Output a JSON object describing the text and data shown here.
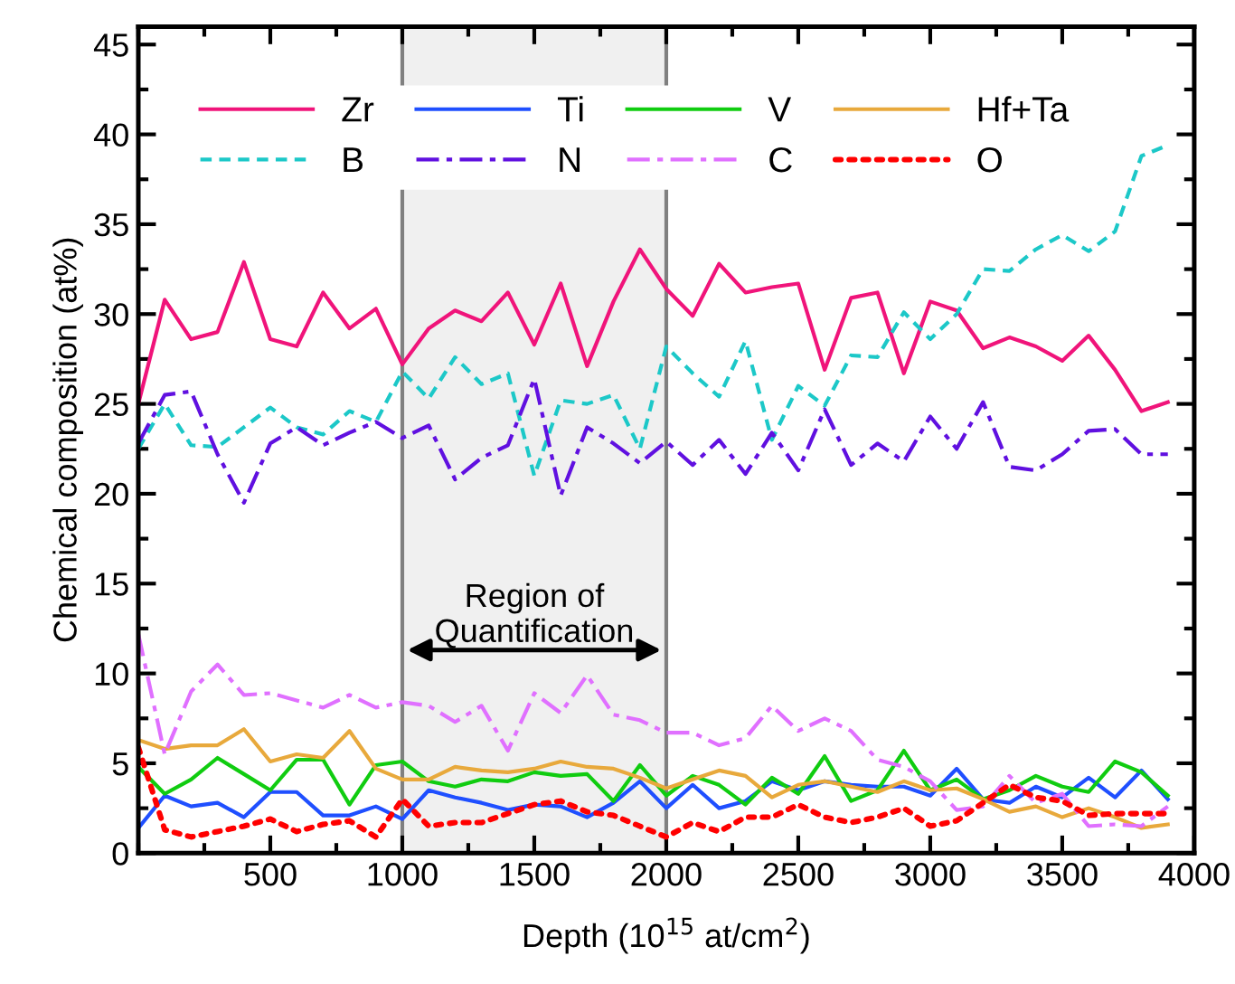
{
  "chart_data": {
    "type": "line",
    "xlabel": "Depth (10$^{15}$ at/cm$^{2}$)",
    "ylabel": "Chemical composition (at%)",
    "x": [
      0,
      100,
      200,
      300,
      400,
      500,
      600,
      700,
      800,
      900,
      1000,
      1100,
      1200,
      1300,
      1400,
      1500,
      1600,
      1700,
      1800,
      1900,
      2000,
      2100,
      2200,
      2300,
      2400,
      2500,
      2600,
      2700,
      2800,
      2900,
      3000,
      3100,
      3200,
      3300,
      3400,
      3500,
      3600,
      3700,
      3800,
      3900
    ],
    "xlim": [
      0,
      4000
    ],
    "xticks": [
      500,
      1000,
      1500,
      2000,
      2500,
      3000,
      3500,
      4000
    ],
    "ylim": [
      0,
      46
    ],
    "yticks": [
      0,
      5,
      10,
      15,
      20,
      25,
      30,
      35,
      40,
      45
    ],
    "legend": "top",
    "grid": false,
    "bands": [
      {
        "axis": "x",
        "from": 1000,
        "to": 2000,
        "label": "Region of\nQuantification",
        "color": "#f0f0f0"
      }
    ],
    "series": [
      {
        "name": "Zr",
        "color": "#f0147a",
        "line_style": "solid",
        "values": [
          25,
          30.8,
          28.6,
          29.0,
          32.9,
          28.6,
          28.2,
          31.2,
          29.2,
          30.3,
          27.2,
          29.2,
          30.2,
          29.6,
          31.2,
          28.3,
          31.7,
          27.1,
          30.7,
          33.6,
          31.4,
          29.9,
          32.8,
          31.2,
          31.5,
          31.7,
          26.9,
          30.9,
          31.2,
          26.7,
          30.7,
          30.2,
          28.1,
          28.7,
          28.2,
          27.4,
          28.8,
          26.9,
          24.6,
          25.1
        ]
      },
      {
        "name": "Ti",
        "color": "#1f4fff",
        "line_style": "solid",
        "values": [
          1.4,
          3.2,
          2.6,
          2.8,
          2.0,
          3.4,
          3.4,
          2.1,
          2.1,
          2.6,
          1.9,
          3.5,
          3.1,
          2.8,
          2.4,
          2.7,
          2.6,
          2.0,
          2.8,
          4.0,
          2.5,
          3.8,
          2.5,
          2.9,
          4.0,
          3.5,
          4.0,
          3.8,
          3.7,
          3.7,
          3.2,
          4.7,
          3.0,
          2.8,
          3.7,
          3.1,
          4.2,
          3.1,
          4.6,
          3.0
        ]
      },
      {
        "name": "V",
        "color": "#10cc10",
        "line_style": "solid",
        "values": [
          4.8,
          3.3,
          4.1,
          5.3,
          4.4,
          3.5,
          5.2,
          5.2,
          2.7,
          4.9,
          5.1,
          4.0,
          3.7,
          4.1,
          4.0,
          4.5,
          4.3,
          4.4,
          2.9,
          4.9,
          3.2,
          4.3,
          3.8,
          2.7,
          4.2,
          3.3,
          5.4,
          2.9,
          3.5,
          5.7,
          3.5,
          4.1,
          3.0,
          3.5,
          4.3,
          3.7,
          3.4,
          5.1,
          4.5,
          3.2
        ]
      },
      {
        "name": "Hf+Ta",
        "color": "#e8a93c",
        "line_style": "solid",
        "values": [
          6.3,
          5.8,
          6.0,
          6.0,
          6.9,
          5.1,
          5.5,
          5.3,
          6.8,
          4.7,
          4.1,
          4.1,
          4.8,
          4.6,
          4.5,
          4.7,
          5.1,
          4.8,
          4.7,
          4.2,
          3.6,
          4.1,
          4.6,
          4.3,
          3.1,
          3.8,
          4.0,
          3.7,
          3.4,
          4.0,
          3.5,
          3.6,
          3.0,
          2.3,
          2.6,
          2.0,
          2.5,
          2.0,
          1.4,
          1.6
        ]
      },
      {
        "name": "B",
        "color": "#1cc8c8",
        "line_style": "dashed",
        "values": [
          22.5,
          25.0,
          22.7,
          22.6,
          23.7,
          24.8,
          23.7,
          23.3,
          24.6,
          24.0,
          26.8,
          25.3,
          27.6,
          26.1,
          26.7,
          21.0,
          25.2,
          25.0,
          25.5,
          22.5,
          28.2,
          26.7,
          25.4,
          28.5,
          23.0,
          26.0,
          24.9,
          27.7,
          27.6,
          30.1,
          28.6,
          30.0,
          32.5,
          32.4,
          33.6,
          34.4,
          33.5,
          34.6,
          38.8,
          39.4
        ]
      },
      {
        "name": "N",
        "color": "#6010e0",
        "line_style": "dashdot",
        "values": [
          22.8,
          25.5,
          25.7,
          22.2,
          19.5,
          22.8,
          23.7,
          22.7,
          23.4,
          24.0,
          23.1,
          23.8,
          20.8,
          22.0,
          22.7,
          26.4,
          19.9,
          23.7,
          22.8,
          21.7,
          22.9,
          21.6,
          23.0,
          21.1,
          23.4,
          21.3,
          24.7,
          21.6,
          22.8,
          21.8,
          24.3,
          22.5,
          25.1,
          21.5,
          21.3,
          22.2,
          23.5,
          23.6,
          22.2,
          22.2
        ]
      },
      {
        "name": "C",
        "color": "#e070ff",
        "line_style": "dashdot",
        "values": [
          12.2,
          5.5,
          9.0,
          10.5,
          8.8,
          8.9,
          8.5,
          8.1,
          8.8,
          8.1,
          8.4,
          8.2,
          7.3,
          8.2,
          5.7,
          8.9,
          7.8,
          9.9,
          7.7,
          7.4,
          6.7,
          6.7,
          6.0,
          6.4,
          8.2,
          6.8,
          7.5,
          6.8,
          5.2,
          4.8,
          4.0,
          2.4,
          2.6,
          4.3,
          2.8,
          3.3,
          1.5,
          1.6,
          1.5,
          2.6
        ]
      },
      {
        "name": "O",
        "color": "#ff0000",
        "line_style": "dotted",
        "values": [
          5.9,
          1.3,
          0.9,
          1.2,
          1.5,
          1.9,
          1.2,
          1.6,
          1.8,
          0.9,
          3.0,
          1.5,
          1.7,
          1.7,
          2.2,
          2.7,
          2.9,
          2.3,
          2.1,
          1.5,
          0.9,
          1.7,
          1.2,
          2.0,
          2.0,
          2.7,
          2.0,
          1.7,
          2.0,
          2.5,
          1.5,
          1.8,
          2.8,
          3.8,
          3.1,
          2.9,
          2.1,
          2.2,
          2.2,
          2.2
        ]
      }
    ]
  }
}
